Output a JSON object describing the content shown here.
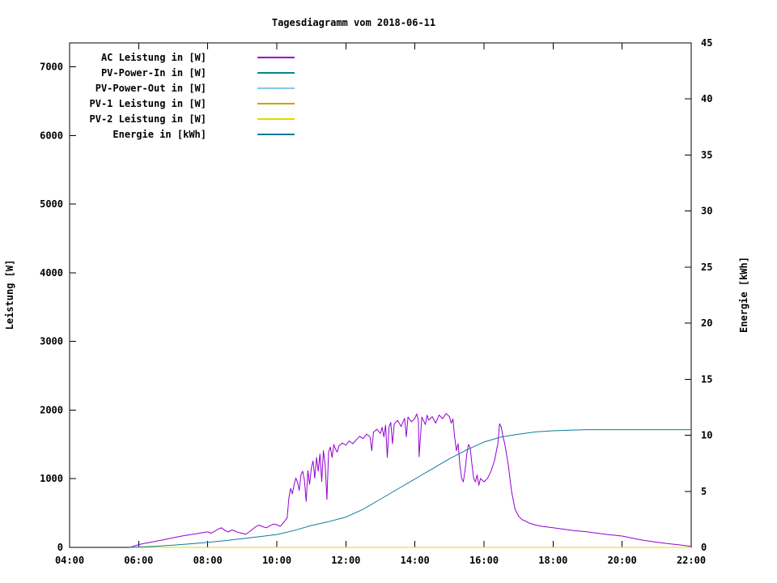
{
  "chart_data": {
    "type": "line",
    "title": "Tagesdiagramm vom 2018-06-11",
    "xlabel": "",
    "ylabel_left": "Leistung [W]",
    "ylabel_right": "Energie [kWh]",
    "x_range": [
      4,
      22
    ],
    "x_ticks": [
      {
        "h": 4,
        "label": "04:00"
      },
      {
        "h": 6,
        "label": "06:00"
      },
      {
        "h": 8,
        "label": "08:00"
      },
      {
        "h": 10,
        "label": "10:00"
      },
      {
        "h": 12,
        "label": "12:00"
      },
      {
        "h": 14,
        "label": "14:00"
      },
      {
        "h": 16,
        "label": "16:00"
      },
      {
        "h": 18,
        "label": "18:00"
      },
      {
        "h": 20,
        "label": "20:00"
      },
      {
        "h": 22,
        "label": "22:00"
      }
    ],
    "ylim_left": [
      0,
      7350
    ],
    "yticks_left": [
      0,
      1000,
      2000,
      3000,
      4000,
      5000,
      6000,
      7000
    ],
    "ylim_right": [
      0,
      45
    ],
    "yticks_right": [
      0,
      5,
      10,
      15,
      20,
      25,
      30,
      35,
      40,
      45
    ],
    "grid": false,
    "legend_position": "top-left",
    "series": [
      {
        "name": "AC Leistung in [W]",
        "color": "#9400d3",
        "axis": "left",
        "points": [
          [
            5.75,
            0
          ],
          [
            5.9,
            25
          ],
          [
            6.0,
            40
          ],
          [
            6.15,
            55
          ],
          [
            6.3,
            70
          ],
          [
            6.5,
            90
          ],
          [
            6.7,
            110
          ],
          [
            6.9,
            130
          ],
          [
            7.1,
            150
          ],
          [
            7.3,
            170
          ],
          [
            7.5,
            185
          ],
          [
            7.7,
            200
          ],
          [
            7.85,
            215
          ],
          [
            8.0,
            225
          ],
          [
            8.1,
            205
          ],
          [
            8.2,
            235
          ],
          [
            8.3,
            265
          ],
          [
            8.4,
            285
          ],
          [
            8.5,
            245
          ],
          [
            8.6,
            225
          ],
          [
            8.7,
            255
          ],
          [
            8.8,
            235
          ],
          [
            8.9,
            215
          ],
          [
            9.0,
            205
          ],
          [
            9.1,
            190
          ],
          [
            9.2,
            225
          ],
          [
            9.3,
            265
          ],
          [
            9.4,
            305
          ],
          [
            9.5,
            325
          ],
          [
            9.6,
            300
          ],
          [
            9.7,
            285
          ],
          [
            9.8,
            315
          ],
          [
            9.9,
            340
          ],
          [
            10.0,
            330
          ],
          [
            10.1,
            305
          ],
          [
            10.2,
            365
          ],
          [
            10.3,
            430
          ],
          [
            10.35,
            720
          ],
          [
            10.4,
            860
          ],
          [
            10.45,
            780
          ],
          [
            10.5,
            910
          ],
          [
            10.55,
            1010
          ],
          [
            10.6,
            950
          ],
          [
            10.65,
            830
          ],
          [
            10.7,
            1060
          ],
          [
            10.75,
            1110
          ],
          [
            10.8,
            980
          ],
          [
            10.85,
            670
          ],
          [
            10.9,
            1120
          ],
          [
            10.95,
            920
          ],
          [
            11.0,
            1160
          ],
          [
            11.05,
            1260
          ],
          [
            11.1,
            1010
          ],
          [
            11.15,
            1310
          ],
          [
            11.2,
            1110
          ],
          [
            11.25,
            1360
          ],
          [
            11.3,
            960
          ],
          [
            11.35,
            1410
          ],
          [
            11.4,
            1210
          ],
          [
            11.45,
            700
          ],
          [
            11.5,
            1390
          ],
          [
            11.55,
            1460
          ],
          [
            11.6,
            1310
          ],
          [
            11.65,
            1500
          ],
          [
            11.7,
            1430
          ],
          [
            11.75,
            1390
          ],
          [
            11.8,
            1480
          ],
          [
            11.9,
            1520
          ],
          [
            12.0,
            1490
          ],
          [
            12.1,
            1550
          ],
          [
            12.2,
            1510
          ],
          [
            12.3,
            1565
          ],
          [
            12.4,
            1620
          ],
          [
            12.5,
            1585
          ],
          [
            12.6,
            1650
          ],
          [
            12.7,
            1610
          ],
          [
            12.75,
            1410
          ],
          [
            12.8,
            1680
          ],
          [
            12.9,
            1720
          ],
          [
            13.0,
            1660
          ],
          [
            13.05,
            1750
          ],
          [
            13.1,
            1610
          ],
          [
            13.15,
            1780
          ],
          [
            13.2,
            1310
          ],
          [
            13.25,
            1755
          ],
          [
            13.3,
            1820
          ],
          [
            13.35,
            1510
          ],
          [
            13.4,
            1800
          ],
          [
            13.5,
            1850
          ],
          [
            13.6,
            1760
          ],
          [
            13.7,
            1880
          ],
          [
            13.75,
            1610
          ],
          [
            13.8,
            1900
          ],
          [
            13.9,
            1830
          ],
          [
            14.0,
            1880
          ],
          [
            14.05,
            1945
          ],
          [
            14.1,
            1855
          ],
          [
            14.12,
            1320
          ],
          [
            14.2,
            1900
          ],
          [
            14.3,
            1790
          ],
          [
            14.35,
            1925
          ],
          [
            14.4,
            1855
          ],
          [
            14.5,
            1905
          ],
          [
            14.6,
            1810
          ],
          [
            14.7,
            1930
          ],
          [
            14.8,
            1875
          ],
          [
            14.9,
            1950
          ],
          [
            15.0,
            1905
          ],
          [
            15.05,
            1810
          ],
          [
            15.1,
            1870
          ],
          [
            15.15,
            1610
          ],
          [
            15.2,
            1410
          ],
          [
            15.25,
            1510
          ],
          [
            15.3,
            1210
          ],
          [
            15.35,
            1010
          ],
          [
            15.4,
            955
          ],
          [
            15.45,
            1110
          ],
          [
            15.5,
            1355
          ],
          [
            15.55,
            1500
          ],
          [
            15.6,
            1455
          ],
          [
            15.65,
            1210
          ],
          [
            15.7,
            1010
          ],
          [
            15.75,
            955
          ],
          [
            15.8,
            1055
          ],
          [
            15.85,
            905
          ],
          [
            15.9,
            1005
          ],
          [
            16.0,
            955
          ],
          [
            16.1,
            1005
          ],
          [
            16.2,
            1105
          ],
          [
            16.3,
            1255
          ],
          [
            16.4,
            1510
          ],
          [
            16.45,
            1800
          ],
          [
            16.5,
            1755
          ],
          [
            16.55,
            1610
          ],
          [
            16.6,
            1510
          ],
          [
            16.7,
            1210
          ],
          [
            16.8,
            810
          ],
          [
            16.9,
            555
          ],
          [
            17.0,
            455
          ],
          [
            17.1,
            405
          ],
          [
            17.2,
            385
          ],
          [
            17.3,
            355
          ],
          [
            17.5,
            325
          ],
          [
            17.7,
            305
          ],
          [
            18.0,
            285
          ],
          [
            18.3,
            265
          ],
          [
            18.6,
            245
          ],
          [
            19.0,
            225
          ],
          [
            19.3,
            205
          ],
          [
            19.6,
            185
          ],
          [
            20.0,
            165
          ],
          [
            20.3,
            135
          ],
          [
            20.6,
            105
          ],
          [
            21.0,
            75
          ],
          [
            21.3,
            55
          ],
          [
            21.6,
            40
          ],
          [
            21.8,
            28
          ],
          [
            22.0,
            15
          ]
        ]
      },
      {
        "name": "PV-Power-In in [W]",
        "color": "#008b8b",
        "axis": "left",
        "points": [
          [
            5.75,
            0
          ],
          [
            22,
            0
          ]
        ]
      },
      {
        "name": "PV-Power-Out in [W]",
        "color": "#85c8e8",
        "axis": "left",
        "points": [
          [
            5.75,
            0
          ],
          [
            22,
            0
          ]
        ]
      },
      {
        "name": "PV-1 Leistung in [W]",
        "color": "#c8a200",
        "axis": "left",
        "points": [
          [
            5.75,
            0
          ],
          [
            22,
            0
          ]
        ]
      },
      {
        "name": "PV-2 Leistung in [W]",
        "color": "#e0d800",
        "axis": "left",
        "points": [
          [
            5.75,
            0
          ],
          [
            22,
            0
          ]
        ]
      },
      {
        "name": "Energie in [kWh]",
        "color": "#0f7a99",
        "axis": "right",
        "points": [
          [
            5.75,
            0
          ],
          [
            6.5,
            0.1
          ],
          [
            7,
            0.2
          ],
          [
            7.5,
            0.32
          ],
          [
            8,
            0.45
          ],
          [
            8.5,
            0.6
          ],
          [
            9,
            0.78
          ],
          [
            9.5,
            0.96
          ],
          [
            10,
            1.15
          ],
          [
            10.5,
            1.5
          ],
          [
            11,
            1.95
          ],
          [
            11.5,
            2.3
          ],
          [
            12,
            2.7
          ],
          [
            12.5,
            3.4
          ],
          [
            13,
            4.3
          ],
          [
            13.5,
            5.2
          ],
          [
            14,
            6.1
          ],
          [
            14.5,
            7.0
          ],
          [
            15,
            7.9
          ],
          [
            15.5,
            8.7
          ],
          [
            16,
            9.4
          ],
          [
            16.5,
            9.85
          ],
          [
            17,
            10.1
          ],
          [
            17.5,
            10.3
          ],
          [
            18,
            10.4
          ],
          [
            18.5,
            10.45
          ],
          [
            19,
            10.5
          ],
          [
            20,
            10.5
          ],
          [
            21,
            10.5
          ],
          [
            22,
            10.5
          ]
        ]
      }
    ]
  }
}
